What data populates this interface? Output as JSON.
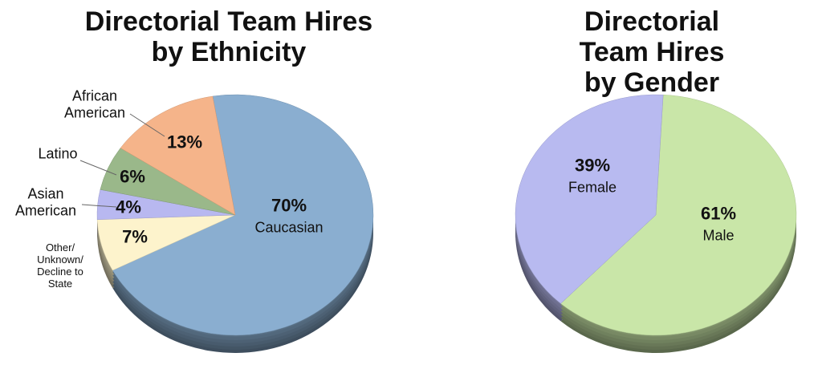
{
  "chart_data": [
    {
      "type": "pie",
      "title": "Directorial Team Hires\nby Ethnicity",
      "categories": [
        "Caucasian",
        "Other/\nUnknown/\nDecline to\nState",
        "Asian\nAmerican",
        "Latino",
        "African\nAmerican"
      ],
      "values": [
        70,
        7,
        4,
        6,
        13
      ],
      "value_labels": [
        "70%",
        "7%",
        "4%",
        "6%",
        "13%"
      ],
      "colors": [
        "#8aaed0",
        "#fdf3cc",
        "#b8b8f0",
        "#9ab88a",
        "#f5b48a"
      ]
    },
    {
      "type": "pie",
      "title": "Directorial Team Hires\nby Gender",
      "categories": [
        "Male",
        "Female"
      ],
      "values": [
        61,
        39
      ],
      "value_labels": [
        "61%",
        "39%"
      ],
      "colors": [
        "#c9e6a8",
        "#b8baf0"
      ]
    }
  ]
}
